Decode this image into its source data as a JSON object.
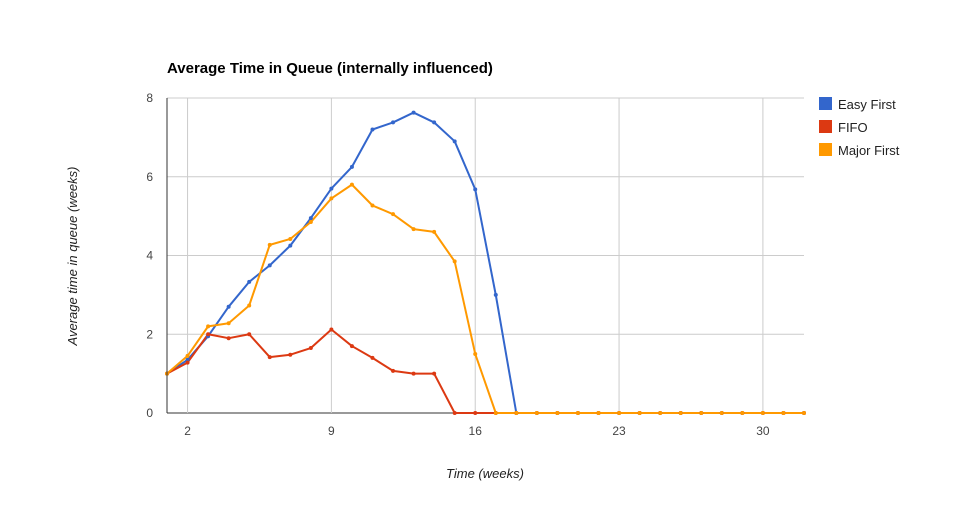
{
  "chart_data": {
    "type": "line",
    "title": "Average Time in Queue (internally influenced)",
    "xlabel": "Time (weeks)",
    "ylabel": "Average time in queue (weeks)",
    "x": [
      1,
      2,
      3,
      4,
      5,
      6,
      7,
      8,
      9,
      10,
      11,
      12,
      13,
      14,
      15,
      16,
      17,
      18,
      19,
      20,
      21,
      22,
      23,
      24,
      25,
      26,
      27,
      28,
      29,
      30,
      31,
      32
    ],
    "xlim": [
      1,
      32
    ],
    "ylim": [
      0,
      8
    ],
    "x_ticks": [
      2,
      9,
      16,
      23,
      30
    ],
    "y_ticks": [
      0,
      2,
      4,
      6,
      8
    ],
    "grid": true,
    "legend_position": "right",
    "series": [
      {
        "name": "Easy First",
        "color": "#3366cc",
        "values": [
          1.0,
          1.35,
          1.95,
          2.7,
          3.33,
          3.75,
          4.25,
          4.95,
          5.7,
          6.25,
          7.2,
          7.38,
          7.63,
          7.38,
          6.9,
          5.68,
          3.0,
          0,
          0,
          0,
          0,
          0,
          0,
          0,
          0,
          0,
          0,
          0,
          0,
          0,
          0,
          0
        ]
      },
      {
        "name": "FIFO",
        "color": "#dc3912",
        "values": [
          1.0,
          1.28,
          2.0,
          1.9,
          2.0,
          1.42,
          1.48,
          1.65,
          2.12,
          1.7,
          1.4,
          1.07,
          1.0,
          1.0,
          0,
          0,
          0,
          0,
          0,
          0,
          0,
          0,
          0,
          0,
          0,
          0,
          0,
          0,
          0,
          0,
          0,
          0
        ]
      },
      {
        "name": "Major First",
        "color": "#ff9900",
        "values": [
          1.0,
          1.45,
          2.2,
          2.28,
          2.73,
          4.27,
          4.42,
          4.85,
          5.45,
          5.8,
          5.27,
          5.05,
          4.67,
          4.6,
          3.85,
          1.5,
          0,
          0,
          0,
          0,
          0,
          0,
          0,
          0,
          0,
          0,
          0,
          0,
          0,
          0,
          0,
          0
        ]
      }
    ]
  }
}
